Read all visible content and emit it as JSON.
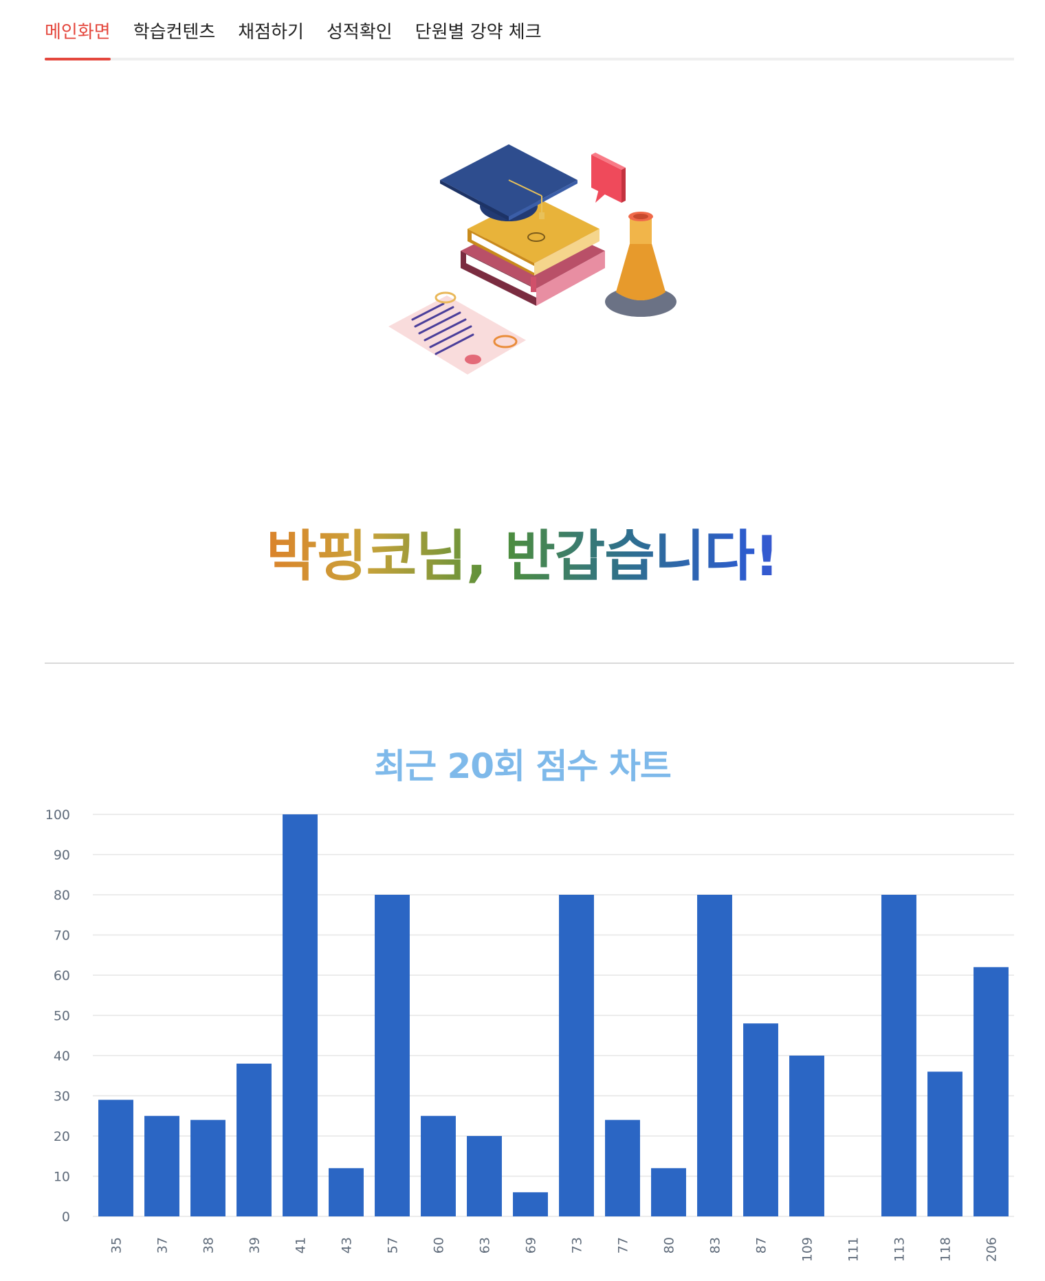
{
  "nav": {
    "tabs": [
      {
        "label": "메인화면",
        "active": true
      },
      {
        "label": "학습컨텐츠",
        "active": false
      },
      {
        "label": "채점하기",
        "active": false
      },
      {
        "label": "성적확인",
        "active": false
      },
      {
        "label": "단원별 강약 체크",
        "active": false
      }
    ],
    "accent_color": "#e4473d"
  },
  "hero": {
    "illustration_icon": "graduation-books-icon",
    "welcome_text": "박핑코님, 반갑습니다!"
  },
  "chart_title": "최근 20회 점수 차트",
  "chart_data": {
    "type": "bar",
    "title": "최근 20회 점수 차트",
    "xlabel": "",
    "ylabel": "",
    "categories": [
      "35",
      "37",
      "38",
      "39",
      "41",
      "43",
      "57",
      "60",
      "63",
      "69",
      "73",
      "77",
      "80",
      "83",
      "87",
      "109",
      "111",
      "113",
      "118",
      "206"
    ],
    "values": [
      29,
      25,
      24,
      38,
      100,
      12,
      80,
      25,
      20,
      6,
      80,
      24,
      12,
      80,
      48,
      40,
      0,
      80,
      36,
      62
    ],
    "ylim": [
      0,
      100
    ],
    "yticks": [
      0,
      10,
      20,
      30,
      40,
      50,
      60,
      70,
      80,
      90,
      100
    ],
    "grid": true,
    "bar_color": "#2b66c4"
  }
}
